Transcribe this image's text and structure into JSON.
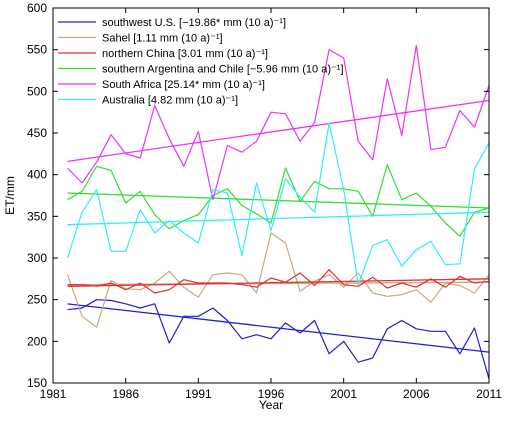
{
  "chart_data": {
    "type": "line",
    "xlabel": "Year",
    "ylabel": "ET/mm",
    "xlim": [
      1981,
      2011
    ],
    "ylim": [
      150,
      600
    ],
    "xticks": [
      1981,
      1986,
      1991,
      1996,
      2001,
      2006,
      2011
    ],
    "yticks": [
      150,
      200,
      250,
      300,
      350,
      400,
      450,
      500,
      550,
      600
    ],
    "grid": false,
    "legend_position": "top-left",
    "x": [
      1982,
      1983,
      1984,
      1985,
      1986,
      1987,
      1988,
      1989,
      1990,
      1991,
      1992,
      1993,
      1994,
      1995,
      1996,
      1997,
      1998,
      1999,
      2000,
      2001,
      2002,
      2003,
      2004,
      2005,
      2006,
      2007,
      2008,
      2009,
      2010,
      2011
    ],
    "series": [
      {
        "name": "southwest U.S. [−19.86* mm (10 a)⁻¹]",
        "color": "#1f1fd0",
        "values": [
          238,
          240,
          250,
          249,
          245,
          240,
          245,
          198,
          230,
          230,
          240,
          225,
          203,
          208,
          203,
          222,
          210,
          225,
          185,
          200,
          175,
          180,
          215,
          225,
          215,
          212,
          212,
          185,
          216,
          155
        ],
        "trend": [
          245,
          187
        ]
      },
      {
        "name": "Sahel [1.11 mm (10 a)⁻¹]",
        "color": "#c8a882",
        "values": [
          280,
          230,
          217,
          273,
          263,
          262,
          270,
          284,
          265,
          253,
          280,
          282,
          280,
          258,
          330,
          318,
          260,
          272,
          280,
          265,
          282,
          258,
          254,
          256,
          262,
          247,
          270,
          267,
          258,
          280
        ],
        "trend": [
          268,
          271
        ]
      },
      {
        "name": "northern China [3.01 mm (10 a)⁻¹]",
        "color": "#e03030",
        "values": [
          268,
          268,
          266,
          270,
          262,
          270,
          258,
          262,
          274,
          270,
          270,
          270,
          268,
          265,
          276,
          271,
          282,
          267,
          286,
          268,
          266,
          277,
          264,
          270,
          265,
          275,
          265,
          278,
          270,
          272
        ],
        "trend": [
          266,
          275
        ]
      },
      {
        "name": "southern Argentina and Chile [−5.96 mm (10 a)⁻¹]",
        "color": "#33dd33",
        "values": [
          370,
          380,
          410,
          405,
          366,
          380,
          352,
          335,
          345,
          352,
          375,
          383,
          363,
          353,
          342,
          408,
          368,
          392,
          383,
          383,
          380,
          350,
          412,
          370,
          378,
          362,
          342,
          326,
          355,
          360
        ],
        "trend": [
          378,
          360
        ]
      },
      {
        "name": "South Africa [25.14* mm (10 a)⁻¹]",
        "color": "#ee33ee",
        "values": [
          408,
          390,
          415,
          448,
          425,
          420,
          483,
          443,
          410,
          452,
          370,
          435,
          427,
          440,
          475,
          473,
          440,
          463,
          550,
          540,
          440,
          418,
          515,
          447,
          555,
          430,
          433,
          477,
          457,
          507
        ],
        "trend": [
          416,
          489
        ]
      },
      {
        "name": "Australia [4.82 mm (10 a)⁻¹]",
        "color": "#33eeee",
        "values": [
          300,
          355,
          382,
          308,
          308,
          358,
          330,
          345,
          330,
          318,
          382,
          378,
          303,
          390,
          333,
          395,
          373,
          355,
          462,
          382,
          268,
          315,
          322,
          290,
          310,
          320,
          292,
          293,
          407,
          438
        ],
        "trend": [
          340,
          355
        ]
      }
    ]
  }
}
